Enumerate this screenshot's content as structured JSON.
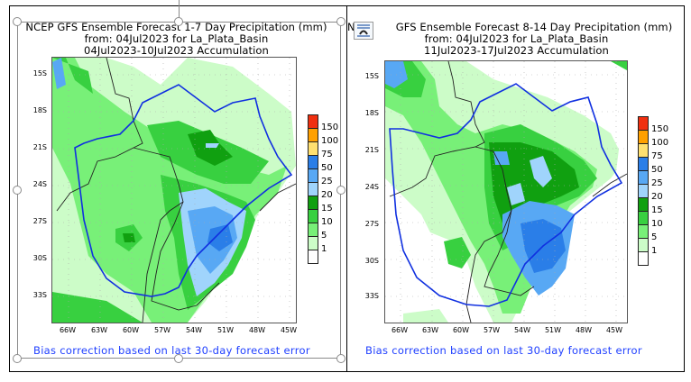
{
  "left_panel": {
    "title_line1": "NCEP GFS Ensemble Forecast 1-7 Day Precipitation (mm)",
    "title_line2": "from: 04Jul2023   for La_Plata_Basin",
    "title_line3": "04Jul2023-10Jul2023 Accumulation",
    "footnote": "Bias correction based on last 30-day forecast error"
  },
  "right_panel": {
    "title_prefix": "N",
    "title_line1": "GFS Ensemble Forecast 8-14 Day Precipitation (mm)",
    "title_line2": "from: 04Jul2023   for La_Plata_Basin",
    "title_line3": "11Jul2023-17Jul2023 Accumulation",
    "footnote": "Bias correction based on last 30-day forecast error"
  },
  "axes": {
    "lat_ticks": [
      "15S",
      "18S",
      "21S",
      "24S",
      "27S",
      "30S",
      "33S"
    ],
    "lon_ticks": [
      "66W",
      "63W",
      "60W",
      "57W",
      "54W",
      "51W",
      "48W",
      "45W"
    ]
  },
  "legend": {
    "levels": [
      "150",
      "100",
      "75",
      "50",
      "25",
      "20",
      "15",
      "10",
      "5",
      "1"
    ],
    "colors": [
      "#f03010",
      "#ffa000",
      "#ffe070",
      "#2a7ee8",
      "#58a8f4",
      "#a0d4fc",
      "#10a010",
      "#38d040",
      "#78f078",
      "#ccfcc8",
      "#ffffff"
    ]
  },
  "icons": {
    "layout_options": "layout-options-icon"
  }
}
